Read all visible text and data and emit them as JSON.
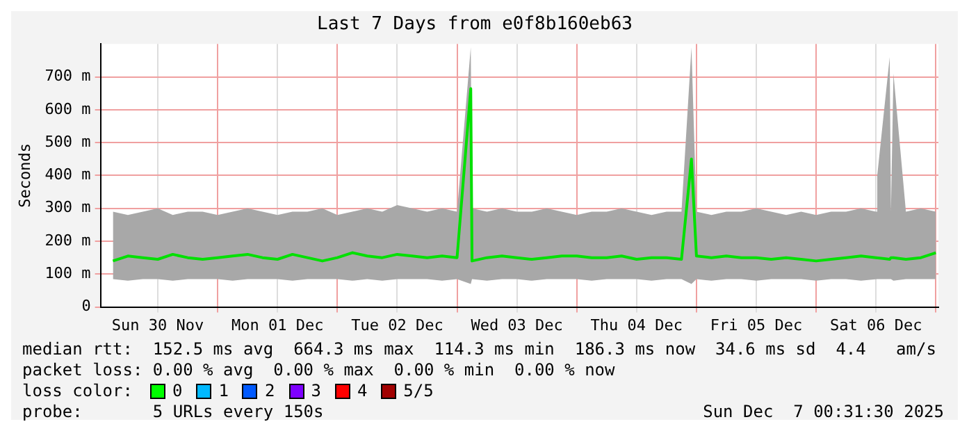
{
  "chart_data": {
    "type": "line",
    "title": "Last 7 Days from e0f8b160eb63",
    "ylabel": "Seconds",
    "x": [
      "2025-11-30T03:00",
      "2025-11-30T06:00",
      "2025-11-30T09:00",
      "2025-11-30T12:00",
      "2025-11-30T15:00",
      "2025-11-30T18:00",
      "2025-11-30T21:00",
      "2025-12-01T00:00",
      "2025-12-01T03:00",
      "2025-12-01T06:00",
      "2025-12-01T09:00",
      "2025-12-01T12:00",
      "2025-12-01T15:00",
      "2025-12-01T18:00",
      "2025-12-01T21:00",
      "2025-12-02T00:00",
      "2025-12-02T03:00",
      "2025-12-02T06:00",
      "2025-12-02T09:00",
      "2025-12-02T12:00",
      "2025-12-02T15:00",
      "2025-12-02T18:00",
      "2025-12-02T21:00",
      "2025-12-03T00:00",
      "2025-12-03T02:45",
      "2025-12-03T03:00",
      "2025-12-03T06:00",
      "2025-12-03T09:00",
      "2025-12-03T12:00",
      "2025-12-03T15:00",
      "2025-12-03T18:00",
      "2025-12-03T21:00",
      "2025-12-04T00:00",
      "2025-12-04T03:00",
      "2025-12-04T06:00",
      "2025-12-04T09:00",
      "2025-12-04T12:00",
      "2025-12-04T15:00",
      "2025-12-04T18:00",
      "2025-12-04T21:00",
      "2025-12-04T23:00",
      "2025-12-05T00:00",
      "2025-12-05T03:00",
      "2025-12-05T06:00",
      "2025-12-05T09:00",
      "2025-12-05T12:00",
      "2025-12-05T15:00",
      "2025-12-05T18:00",
      "2025-12-05T21:00",
      "2025-12-06T00:00",
      "2025-12-06T03:00",
      "2025-12-06T06:00",
      "2025-12-06T09:00",
      "2025-12-06T12:00",
      "2025-12-06T12:15",
      "2025-12-06T14:45",
      "2025-12-06T15:00",
      "2025-12-06T15:30",
      "2025-12-06T18:00",
      "2025-12-06T21:00",
      "2025-12-07T00:00"
    ],
    "series": [
      {
        "color": "#00e000",
        "values": [
          140,
          155,
          150,
          145,
          160,
          150,
          145,
          150,
          155,
          160,
          150,
          145,
          160,
          150,
          140,
          150,
          165,
          155,
          150,
          160,
          155,
          150,
          155,
          150,
          664,
          140,
          150,
          155,
          150,
          145,
          150,
          155,
          155,
          150,
          150,
          155,
          145,
          150,
          150,
          145,
          450,
          155,
          150,
          155,
          150,
          150,
          145,
          150,
          145,
          140,
          145,
          150,
          155,
          150,
          150,
          145,
          150,
          150,
          145,
          150,
          165
        ],
        "lower": [
          85,
          80,
          85,
          85,
          80,
          85,
          85,
          85,
          80,
          85,
          85,
          85,
          80,
          85,
          85,
          85,
          80,
          85,
          80,
          85,
          85,
          85,
          80,
          85,
          70,
          85,
          80,
          85,
          85,
          80,
          85,
          85,
          85,
          80,
          85,
          85,
          85,
          80,
          85,
          85,
          70,
          85,
          80,
          85,
          85,
          80,
          85,
          85,
          85,
          80,
          85,
          85,
          80,
          85,
          85,
          85,
          85,
          80,
          85,
          85,
          85
        ],
        "upper": [
          290,
          280,
          290,
          300,
          280,
          290,
          290,
          280,
          290,
          300,
          290,
          280,
          290,
          290,
          300,
          280,
          290,
          300,
          290,
          310,
          300,
          290,
          300,
          290,
          790,
          300,
          290,
          300,
          290,
          290,
          300,
          290,
          280,
          290,
          290,
          300,
          290,
          280,
          290,
          290,
          790,
          290,
          280,
          290,
          290,
          300,
          290,
          280,
          290,
          280,
          290,
          290,
          300,
          290,
          400,
          760,
          290,
          710,
          290,
          300,
          290
        ]
      }
    ],
    "xlim": [
      "2025-11-30T00:31",
      "2025-12-07T00:31"
    ],
    "xticks": [
      {
        "value": "2025-11-30T12:00",
        "label": "Sun 30 Nov"
      },
      {
        "value": "2025-12-01T00:00",
        "label": null
      },
      {
        "value": "2025-12-01T12:00",
        "label": "Mon 01 Dec"
      },
      {
        "value": "2025-12-02T00:00",
        "label": null
      },
      {
        "value": "2025-12-02T12:00",
        "label": "Tue 02 Dec"
      },
      {
        "value": "2025-12-03T00:00",
        "label": null
      },
      {
        "value": "2025-12-03T12:00",
        "label": "Wed 03 Dec"
      },
      {
        "value": "2025-12-04T00:00",
        "label": null
      },
      {
        "value": "2025-12-04T12:00",
        "label": "Thu 04 Dec"
      },
      {
        "value": "2025-12-05T00:00",
        "label": null
      },
      {
        "value": "2025-12-05T12:00",
        "label": "Fri 05 Dec"
      },
      {
        "value": "2025-12-06T00:00",
        "label": null
      },
      {
        "value": "2025-12-06T12:00",
        "label": "Sat 06 Dec"
      },
      {
        "value": "2025-12-07T00:00",
        "label": null
      }
    ],
    "ylim": [
      0,
      800
    ],
    "yticks": [
      0,
      {
        "value": 100,
        "label": "100 m"
      },
      {
        "value": 200,
        "label": "200 m"
      },
      {
        "value": 300,
        "label": "300 m"
      },
      {
        "value": 400,
        "label": "400 m"
      },
      {
        "value": 500,
        "label": "500 m"
      },
      {
        "value": 600,
        "label": "600 m"
      },
      {
        "value": 700,
        "label": "700 m"
      }
    ],
    "grid": true,
    "legend": false,
    "marker": "none",
    "line_style": "solid",
    "annotations": [
      "median rtt:  152.5 ms avg  664.3 ms max  114.3 ms min  186.3 ms now  34.6 ms sd  4.4   am/s",
      "packet loss: 0.00 % avg  0.00 % max  0.00 % min  0.00 % now",
      "loss color:",
      "0",
      "1",
      "2",
      "3",
      "4",
      "5/5",
      "probe:       5 URLs every 150s",
      "Sun Dec  7 00:31:30 2025"
    ]
  }
}
